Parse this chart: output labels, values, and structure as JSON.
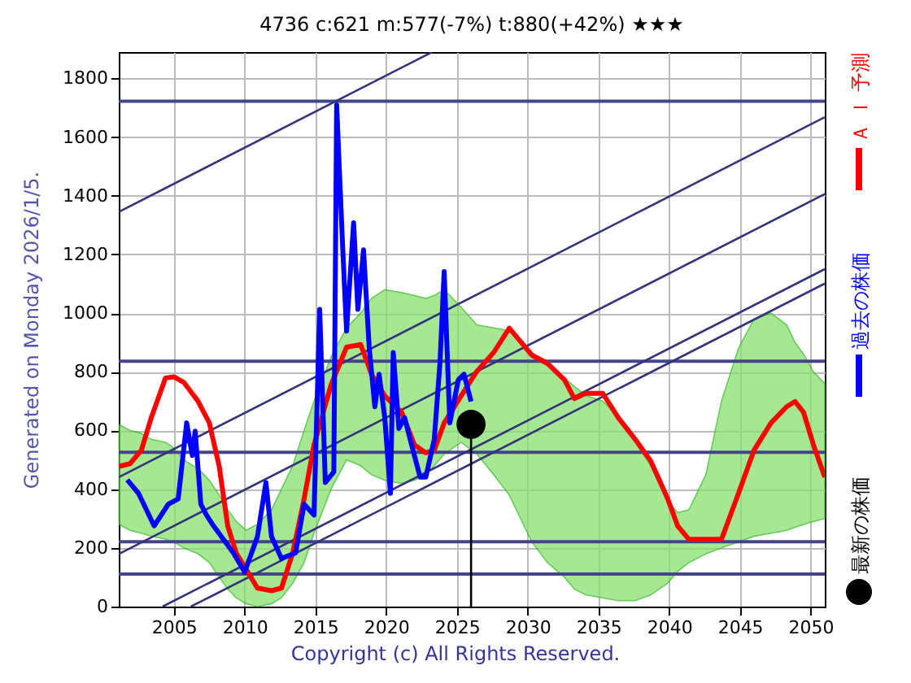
{
  "chart_data": {
    "type": "line",
    "title": "4736  c:621  m:577(-7%)  t:880(+42%)  ★★★",
    "ylabel": "Generated on Monday 2026/1/5.",
    "annotations": [
      "Copyright (c) All Rights Reserved."
    ],
    "xlim": [
      2001.1,
      2051
    ],
    "xticks": [
      2005,
      2010,
      2015,
      2020,
      2025,
      2030,
      2035,
      2040,
      2045,
      2050
    ],
    "ylim": [
      0,
      1890
    ],
    "yticks": [
      0,
      200,
      400,
      600,
      800,
      1000,
      1200,
      1400,
      1600,
      1800
    ],
    "grid": true,
    "legend": "right",
    "ref_lines": [
      {
        "axis": "y",
        "value": 1722,
        "color": "#444488"
      },
      {
        "axis": "y",
        "value": 836,
        "color": "#444488"
      },
      {
        "axis": "y",
        "value": 526,
        "color": "#444488"
      },
      {
        "axis": "y",
        "value": 221,
        "color": "#444488"
      },
      {
        "axis": "y",
        "value": 111,
        "color": "#444488"
      }
    ],
    "series": [
      {
        "color": "#333377",
        "x": [
          2001.1,
          2023.25
        ],
        "values": [
          1345,
          1890
        ]
      },
      {
        "color": "#333377",
        "x": [
          2001.1,
          2051
        ],
        "values": [
          441,
          1668
        ]
      },
      {
        "color": "#333377",
        "x": [
          2001.1,
          2051
        ],
        "values": [
          179,
          1406
        ]
      },
      {
        "color": "#333377",
        "x": [
          2004.2,
          2051
        ],
        "values": [
          0,
          1150
        ]
      },
      {
        "color": "#333377",
        "x": [
          2006.2,
          2051
        ],
        "values": [
          0,
          1101
        ]
      },
      {
        "name": "Ａ Ｉ 予測",
        "color": "#ff0000",
        "x": [
          2001.13,
          2001.9,
          2002.7,
          2003.4,
          2004.4,
          2005.0,
          2005.7,
          2006.7,
          2007.5,
          2008.2,
          2008.8,
          2009.4,
          2010.1,
          2010.9,
          2011.9,
          2012.6,
          2013.4,
          2014.2,
          2014.9,
          2016.1,
          2017.2,
          2018.2,
          2018.96,
          2019.9,
          2021.1,
          2022.0,
          2022.8,
          2023.4,
          2024.1,
          2025.3,
          2026.4,
          2027.6,
          2028.7,
          2029.5,
          2030.3,
          2031.4,
          2032.6,
          2033.3,
          2034.1,
          2035.3,
          2036.4,
          2037.6,
          2038.7,
          2039.9,
          2040.6,
          2041.4,
          2042.6,
          2043.7,
          2044.9,
          2046.0,
          2047.2,
          2048.3,
          2048.9,
          2049.5,
          2050.2,
          2051.0
        ],
        "values": [
          478,
          487,
          533,
          644,
          779,
          783,
          764,
          700,
          626,
          478,
          275,
          183,
          127,
          63,
          54,
          63,
          183,
          367,
          551,
          755,
          884,
          893,
          792,
          718,
          662,
          551,
          524,
          533,
          626,
          718,
          801,
          866,
          949,
          903,
          857,
          829,
          773,
          709,
          727,
          727,
          644,
          570,
          496,
          367,
          275,
          229,
          229,
          229,
          386,
          533,
          626,
          681,
          699,
          662,
          551,
          441
        ],
        "lower": [
          280,
          260,
          250,
          240,
          230,
          220,
          200,
          180,
          150,
          100,
          60,
          30,
          10,
          0,
          10,
          30,
          80,
          150,
          250,
          400,
          500,
          480,
          450,
          430,
          420,
          430,
          450,
          480,
          520,
          560,
          520,
          450,
          380,
          300,
          220,
          150,
          100,
          60,
          40,
          30,
          20,
          20,
          40,
          80,
          120,
          150,
          180,
          200,
          220,
          240,
          250,
          260,
          270,
          280,
          290,
          300
        ],
        "upper": [
          620,
          600,
          590,
          570,
          560,
          540,
          500,
          470,
          430,
          380,
          330,
          290,
          260,
          280,
          330,
          400,
          480,
          600,
          700,
          850,
          950,
          1000,
          1050,
          1080,
          1070,
          1060,
          1050,
          1060,
          1080,
          1020,
          960,
          950,
          940,
          900,
          850,
          820,
          780,
          750,
          720,
          700,
          650,
          560,
          480,
          360,
          320,
          330,
          450,
          700,
          880,
          980,
          1000,
          960,
          900,
          860,
          800,
          760
        ]
      },
      {
        "name": "過去の株価",
        "color": "#0000ff",
        "x": [
          2001.7,
          2002.5,
          2003.6,
          2004.6,
          2005.3,
          2005.9,
          2006.3,
          2006.5,
          2006.9,
          2007.3,
          2007.8,
          2009.2,
          2010.0,
          2010.9,
          2011.5,
          2011.9,
          2012.6,
          2013.6,
          2014.2,
          2014.9,
          2015.3,
          2015.7,
          2016.3,
          2016.5,
          2016.9,
          2017.2,
          2017.7,
          2018.0,
          2018.4,
          2018.8,
          2019.2,
          2019.5,
          2019.9,
          2020.3,
          2020.5,
          2020.9,
          2021.3,
          2021.8,
          2022.4,
          2022.8,
          2023.4,
          2023.8,
          2024.1,
          2024.5,
          2025.1,
          2025.5,
          2026.0
        ],
        "values": [
          432,
          386,
          275,
          349,
          367,
          626,
          515,
          598,
          349,
          312,
          275,
          183,
          118,
          238,
          423,
          238,
          164,
          183,
          349,
          312,
          1013,
          423,
          459,
          1710,
          1253,
          939,
          1308,
          1013,
          1216,
          884,
          681,
          792,
          644,
          386,
          866,
          607,
          644,
          551,
          441,
          441,
          570,
          829,
          1142,
          626,
          773,
          792,
          699
        ]
      },
      {
        "color": "#000000",
        "x": [
          2026.0,
          2026.0
        ],
        "values": [
          0,
          621
        ]
      },
      {
        "name": "最新の株価",
        "type": "scatter",
        "color": "#000000",
        "x": [
          2026.0
        ],
        "values": [
          621
        ]
      }
    ]
  }
}
